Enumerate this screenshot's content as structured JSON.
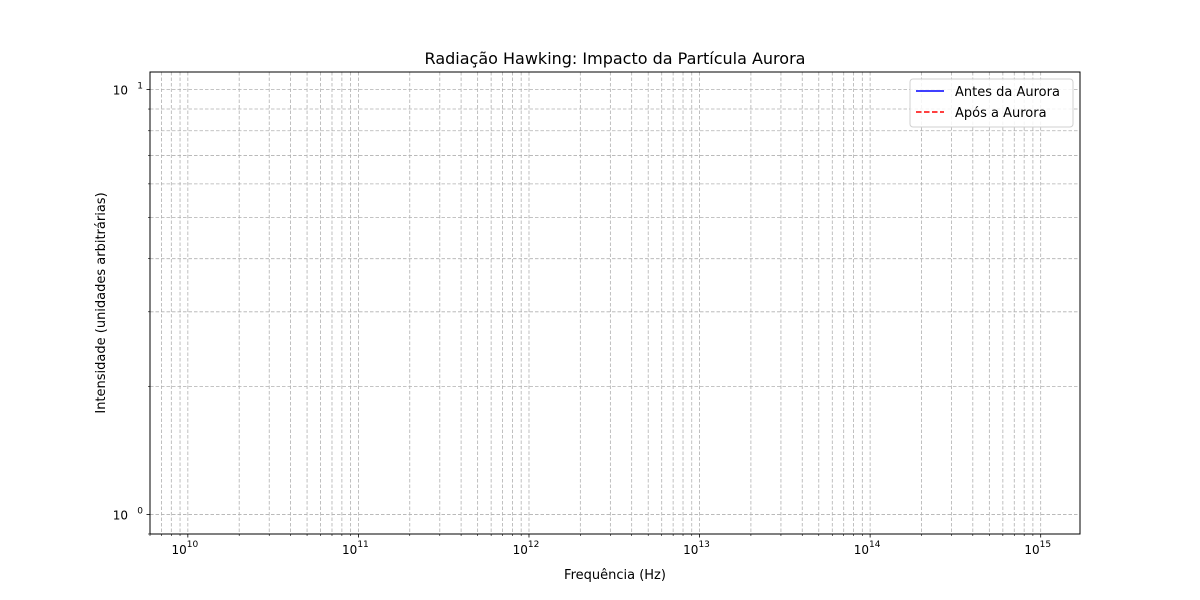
{
  "chart_data": {
    "type": "line",
    "title": "Radiação Hawking: Impacto da Partícula Aurora",
    "xlabel": "Frequência (Hz)",
    "ylabel": "Intensidade (unidades arbitrárias)",
    "x_scale": "log",
    "y_scale": "log",
    "xlim": [
      6000000000.0,
      1700000000000000.0
    ],
    "ylim": [
      0.9,
      11
    ],
    "grid": true,
    "legend_position": "top-right",
    "x_tick_labels": [
      {
        "base": "10",
        "exp": "10"
      },
      {
        "base": "10",
        "exp": "11"
      },
      {
        "base": "10",
        "exp": "12"
      },
      {
        "base": "10",
        "exp": "13"
      },
      {
        "base": "10",
        "exp": "14"
      },
      {
        "base": "10",
        "exp": "15"
      }
    ],
    "y_tick_labels": [
      {
        "base": "10",
        "exp": "0"
      },
      {
        "base": "10",
        "exp": "1"
      }
    ],
    "series": [
      {
        "name": "Antes da Aurora",
        "color": "#0000ff",
        "style": "solid",
        "points": []
      },
      {
        "name": "Após a Aurora",
        "color": "#ff0000",
        "style": "dashed",
        "points": []
      }
    ]
  }
}
